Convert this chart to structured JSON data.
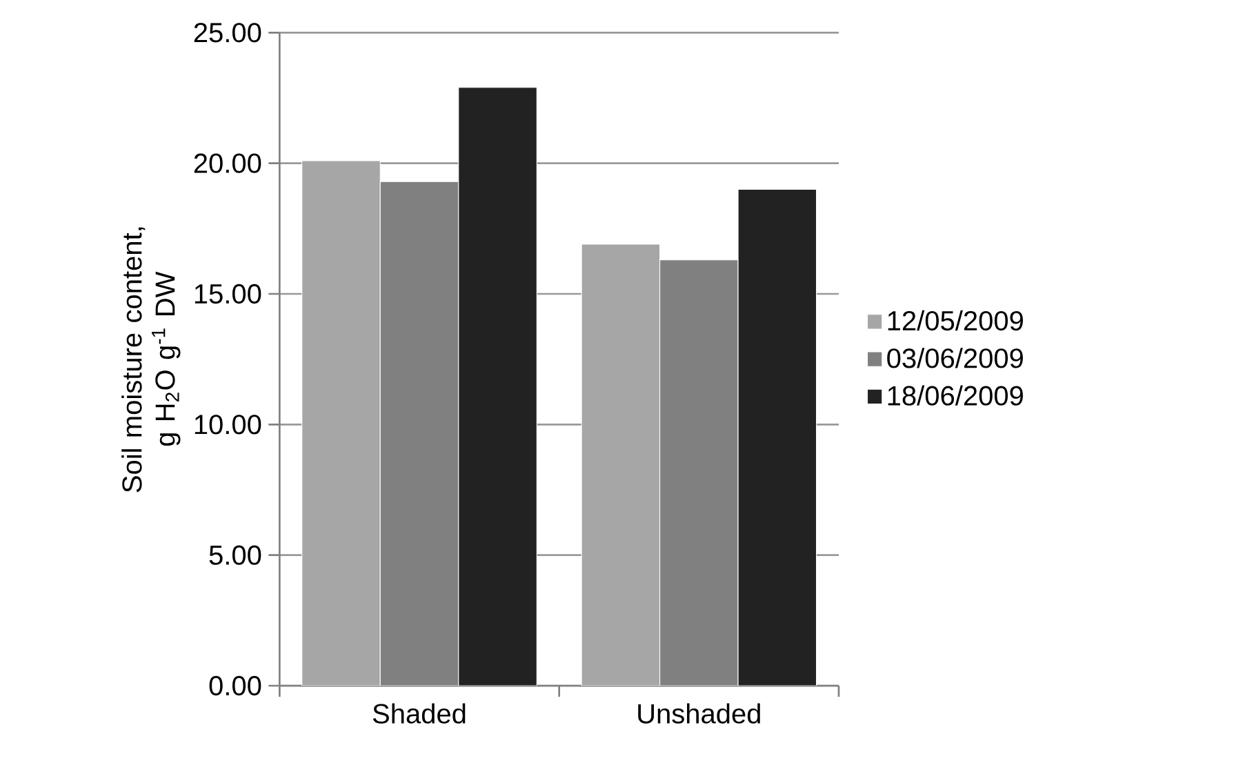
{
  "chart_data": {
    "type": "bar",
    "ylabel": "Soil moisture content, g H$_{2}$O g$^{-1}$ DW",
    "categories": [
      "Shaded",
      "Unshaded"
    ],
    "series": [
      {
        "name": "12/05/2009",
        "color": "#a6a6a6",
        "values": [
          20.1,
          16.9
        ]
      },
      {
        "name": "03/06/2009",
        "color": "#808080",
        "values": [
          19.3,
          16.3
        ]
      },
      {
        "name": "18/06/2009",
        "color": "#222222",
        "values": [
          22.9,
          19.0
        ]
      }
    ],
    "ylim": [
      0,
      25
    ],
    "yticks": [
      {
        "value": 0,
        "label": "0.00"
      },
      {
        "value": 5,
        "label": "5.00"
      },
      {
        "value": 10,
        "label": "10.00"
      },
      {
        "value": 15,
        "label": "15.00"
      },
      {
        "value": 20,
        "label": "20.00"
      },
      {
        "value": 25,
        "label": "25.00"
      }
    ],
    "grid": "y",
    "legend": "right"
  }
}
